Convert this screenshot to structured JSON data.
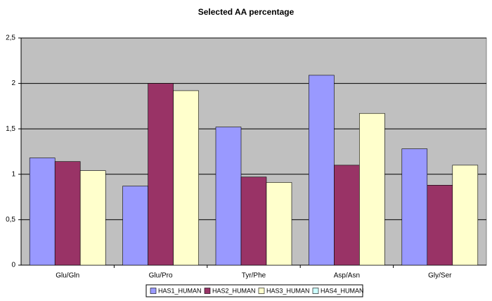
{
  "chart_data": {
    "type": "bar",
    "title": "Selected AA percentage",
    "categories": [
      "Glu/Gln",
      "Glu/Pro",
      "Tyr/Phe",
      "Asp/Asn",
      "Gly/Ser"
    ],
    "series": [
      {
        "name": "HAS1_HUMAN",
        "color": "#9999ff",
        "values": [
          1.18,
          0.87,
          1.52,
          2.09,
          1.28
        ]
      },
      {
        "name": "HAS2_HUMAN",
        "color": "#993366",
        "values": [
          1.14,
          2.0,
          0.97,
          1.1,
          0.88
        ]
      },
      {
        "name": "HAS3_HUMAN",
        "color": "#ffffcc",
        "values": [
          1.04,
          1.92,
          0.91,
          1.67,
          1.1
        ]
      },
      {
        "name": "HAS4_HUMAN",
        "color": "#ccffff",
        "values": [
          null,
          null,
          null,
          null,
          null
        ]
      }
    ],
    "ylim": [
      0,
      2.5
    ],
    "yticks": [
      0,
      {
        "value": 0.5,
        "label": "0,5"
      },
      1,
      {
        "value": 1.5,
        "label": "1,5"
      },
      2,
      {
        "value": 2.5,
        "label": "2,5"
      }
    ],
    "grid": true,
    "legend": "bottom"
  }
}
